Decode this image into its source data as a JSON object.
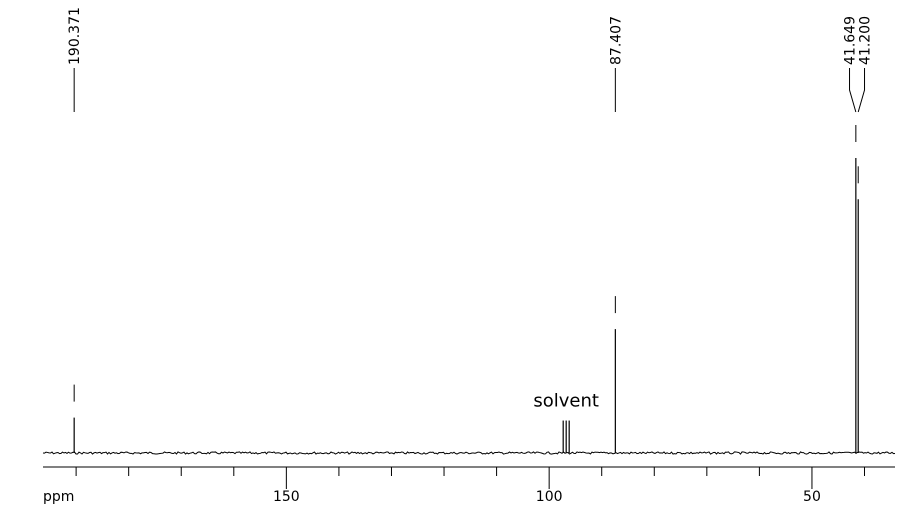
{
  "chart_data": {
    "type": "spectrum",
    "x_label": "ppm",
    "xlim": [
      196.3,
      34.2
    ],
    "xticks": [
      150,
      100,
      50
    ],
    "minor_xticks": [
      190,
      180,
      170,
      160,
      140,
      130,
      120,
      110,
      90,
      80,
      70,
      60,
      40
    ],
    "ylim": [
      0,
      100
    ],
    "picked_peaks": {
      "x": [
        190.371,
        87.407,
        41.649,
        41.2
      ],
      "x_labels": [
        "190.371",
        "87.407",
        "41.649",
        "41.200"
      ],
      "values": [
        12,
        42,
        100,
        86
      ]
    },
    "solvent_peaks": {
      "x": [
        97.33,
        96.76,
        96.19
      ],
      "values": [
        11,
        11,
        11
      ]
    },
    "annotation": "solvent",
    "color": "#000000"
  }
}
